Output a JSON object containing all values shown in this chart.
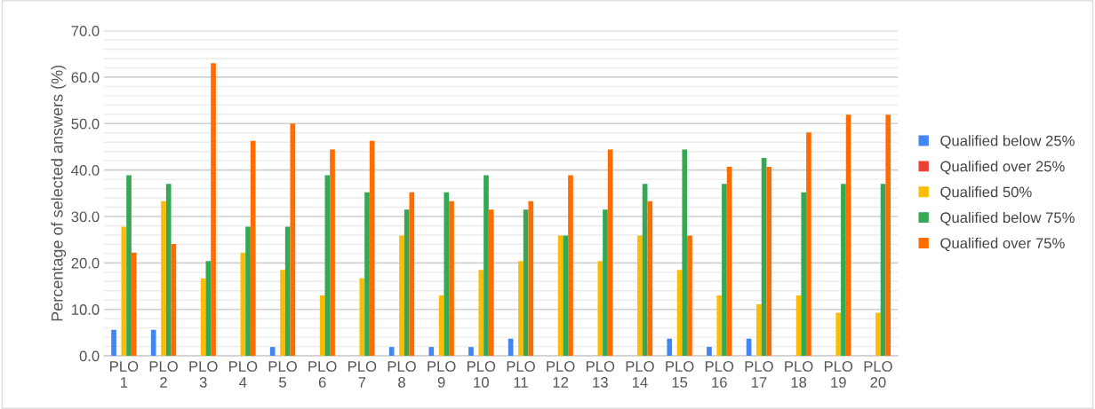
{
  "chart_data": {
    "type": "bar",
    "ylabel": "Percentage of selected answers (%)",
    "categories": [
      "PLO\n1",
      "PLO\n2",
      "PLO\n3",
      "PLO\n4",
      "PLO\n5",
      "PLO\n6",
      "PLO\n7",
      "PLO\n8",
      "PLO\n9",
      "PLO\n10",
      "PLO\n11",
      "PLO\n12",
      "PLO\n13",
      "PLO\n14",
      "PLO\n15",
      "PLO\n16",
      "PLO\n17",
      "PLO\n18",
      "PLO\n19",
      "PLO\n20"
    ],
    "series": [
      {
        "name": "Qualified below 25%",
        "color": "#4285f4",
        "values": [
          5.6,
          5.6,
          0,
          0,
          1.9,
          0,
          0,
          1.9,
          1.9,
          1.9,
          3.7,
          0,
          0,
          0,
          3.7,
          1.9,
          3.7,
          0,
          0,
          0
        ]
      },
      {
        "name": "Qualified over 25%",
        "color": "#ea4335",
        "values": [
          0,
          0,
          0,
          0,
          0,
          0,
          0,
          0,
          0,
          0,
          0,
          0,
          0,
          0,
          0,
          0,
          0,
          0,
          0,
          0
        ]
      },
      {
        "name": "Qualified 50%",
        "color": "#fbbc04",
        "values": [
          27.8,
          33.3,
          16.7,
          22.2,
          18.5,
          13.0,
          16.7,
          25.9,
          13.0,
          18.5,
          20.4,
          25.9,
          20.4,
          25.9,
          18.5,
          13.0,
          11.1,
          13.0,
          9.3,
          9.3
        ]
      },
      {
        "name": "Qualified below 75%",
        "color": "#34a853",
        "values": [
          38.9,
          37.0,
          20.4,
          27.8,
          27.8,
          38.9,
          35.2,
          31.5,
          35.2,
          38.9,
          31.5,
          25.9,
          31.5,
          37.0,
          44.4,
          37.0,
          42.6,
          35.2,
          37.0,
          37.0
        ]
      },
      {
        "name": "Qualified over 75%",
        "color": "#ff6d01",
        "values": [
          22.2,
          24.1,
          63.0,
          46.3,
          50.0,
          44.4,
          46.3,
          35.2,
          33.3,
          31.5,
          33.3,
          38.9,
          44.4,
          33.3,
          25.9,
          40.7,
          40.7,
          48.1,
          51.9,
          51.9
        ]
      }
    ],
    "ylim": [
      0,
      70
    ],
    "yticks": [
      {
        "value": 0,
        "label": "0.0"
      },
      {
        "value": 10,
        "label": "10.0"
      },
      {
        "value": 20,
        "label": "20.0"
      },
      {
        "value": 30,
        "label": "30.0"
      },
      {
        "value": 40,
        "label": "40.0"
      },
      {
        "value": 50,
        "label": "50.0"
      },
      {
        "value": 60,
        "label": "60.0"
      },
      {
        "value": 70,
        "label": "70.0"
      }
    ],
    "grid": "y",
    "legend": "right"
  }
}
